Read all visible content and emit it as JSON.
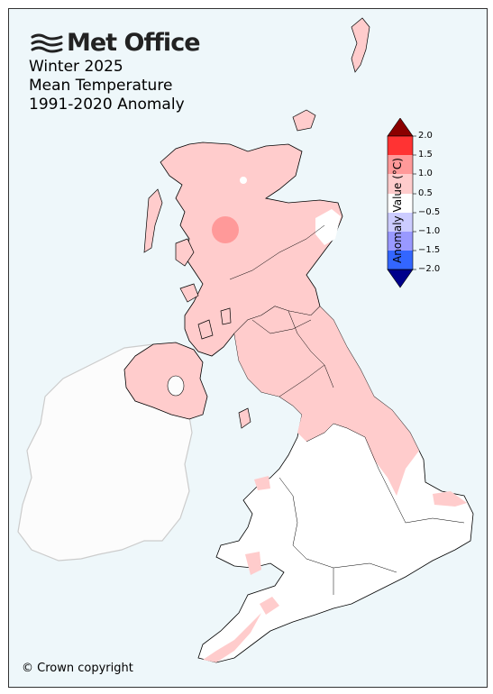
{
  "brand": {
    "name": "Met Office",
    "logo_icon": "met-office-waves-icon"
  },
  "title": {
    "line1": "Winter 2025",
    "line2": "Mean Temperature",
    "line3": "1991-2020 Anomaly"
  },
  "footer": {
    "copyright": "© Crown copyright"
  },
  "colorbar": {
    "title": "Anomaly Value (°C)",
    "ticks": [
      "2.0",
      "1.5",
      "1.0",
      "0.5",
      "−0.5",
      "−1.0",
      "−1.5",
      "−2.0"
    ],
    "bins": [
      {
        "range": "> 2.0",
        "color": "#8b0000"
      },
      {
        "range": "1.5 to 2.0",
        "color": "#ff3333"
      },
      {
        "range": "1.0 to 1.5",
        "color": "#ff9999"
      },
      {
        "range": "0.5 to 1.0",
        "color": "#ffcccc"
      },
      {
        "range": "-0.5 to 0.5",
        "color": "#ffffff"
      },
      {
        "range": "-1.0 to -0.5",
        "color": "#ccccff"
      },
      {
        "range": "-1.5 to -1.0",
        "color": "#9999ff"
      },
      {
        "range": "-2.0 to -1.5",
        "color": "#3366ff"
      },
      {
        "range": "< -2.0",
        "color": "#00008b"
      }
    ]
  },
  "colors": {
    "sea": "#eef7fa",
    "ireland": "#fcfcfc",
    "ireland_border": "#cccccc",
    "outline": "#000000"
  }
}
